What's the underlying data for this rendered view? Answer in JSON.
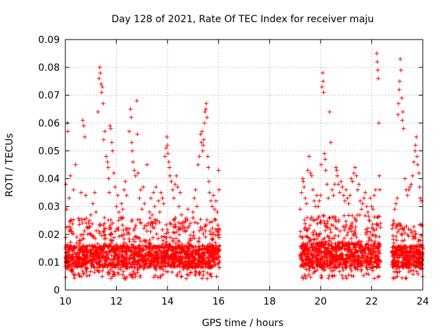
{
  "chart_data": {
    "type": "scatter",
    "title": "Day 128 of 2021, Rate Of TEC Index for receiver maju",
    "xlabel": "GPS time / hours",
    "ylabel": "ROTI / TECUs",
    "xlim": [
      10,
      24
    ],
    "ylim": [
      0,
      0.09
    ],
    "x_ticks": [
      {
        "value": 10,
        "label": "10"
      },
      {
        "value": 12,
        "label": "12"
      },
      {
        "value": 14,
        "label": "14"
      },
      {
        "value": 16,
        "label": "16"
      },
      {
        "value": 18,
        "label": "18"
      },
      {
        "value": 20,
        "label": "20"
      },
      {
        "value": 22,
        "label": "22"
      },
      {
        "value": 24,
        "label": "24"
      }
    ],
    "y_ticks": [
      {
        "value": 0,
        "label": "0"
      },
      {
        "value": 0.01,
        "label": "0.01"
      },
      {
        "value": 0.02,
        "label": "0.02"
      },
      {
        "value": 0.03,
        "label": "0.03"
      },
      {
        "value": 0.04,
        "label": "0.04"
      },
      {
        "value": 0.05,
        "label": "0.05"
      },
      {
        "value": 0.06,
        "label": "0.06"
      },
      {
        "value": 0.07,
        "label": "0.07"
      },
      {
        "value": 0.08,
        "label": "0.08"
      },
      {
        "value": 0.09,
        "label": "0.09"
      }
    ],
    "grid": true,
    "grid_style": "dotted",
    "marker": "plus",
    "marker_color": "#ff0000",
    "series": [
      {
        "name": "ROTI",
        "points": [
          [
            10.02,
            0.038
          ],
          [
            10.05,
            0.029
          ],
          [
            10.08,
            0.06
          ],
          [
            10.1,
            0.057
          ],
          [
            10.15,
            0.033
          ],
          [
            10.2,
            0.041
          ],
          [
            10.25,
            0.021
          ],
          [
            10.32,
            0.036
          ],
          [
            10.4,
            0.045
          ],
          [
            10.45,
            0.019
          ],
          [
            10.55,
            0.025
          ],
          [
            10.62,
            0.035
          ],
          [
            10.68,
            0.061
          ],
          [
            10.72,
            0.059
          ],
          [
            10.76,
            0.055
          ],
          [
            10.8,
            0.034
          ],
          [
            10.88,
            0.02
          ],
          [
            10.95,
            0.025
          ],
          [
            11.0,
            0.027
          ],
          [
            11.08,
            0.031
          ],
          [
            11.15,
            0.035
          ],
          [
            11.2,
            0.028
          ],
          [
            11.28,
            0.064
          ],
          [
            11.32,
            0.076
          ],
          [
            11.35,
            0.08
          ],
          [
            11.37,
            0.078
          ],
          [
            11.4,
            0.074
          ],
          [
            11.42,
            0.071
          ],
          [
            11.45,
            0.073
          ],
          [
            11.48,
            0.067
          ],
          [
            11.5,
            0.054
          ],
          [
            11.55,
            0.057
          ],
          [
            11.6,
            0.048
          ],
          [
            11.65,
            0.046
          ],
          [
            11.68,
            0.044
          ],
          [
            11.7,
            0.04
          ],
          [
            11.72,
            0.035
          ],
          [
            11.75,
            0.059
          ],
          [
            11.78,
            0.058
          ],
          [
            11.82,
            0.053
          ],
          [
            11.85,
            0.05
          ],
          [
            11.9,
            0.042
          ],
          [
            11.95,
            0.037
          ],
          [
            12.0,
            0.03
          ],
          [
            12.05,
            0.034
          ],
          [
            12.1,
            0.028
          ],
          [
            12.15,
            0.026
          ],
          [
            12.2,
            0.031
          ],
          [
            12.25,
            0.029
          ],
          [
            12.3,
            0.036
          ],
          [
            12.35,
            0.039
          ],
          [
            12.4,
            0.034
          ],
          [
            12.45,
            0.022
          ],
          [
            12.5,
            0.057
          ],
          [
            12.55,
            0.065
          ],
          [
            12.58,
            0.062
          ],
          [
            12.6,
            0.053
          ],
          [
            12.62,
            0.05
          ],
          [
            12.65,
            0.046
          ],
          [
            12.7,
            0.043
          ],
          [
            12.75,
            0.041
          ],
          [
            12.8,
            0.068
          ],
          [
            12.82,
            0.056
          ],
          [
            12.85,
            0.042
          ],
          [
            12.9,
            0.033
          ],
          [
            12.95,
            0.036
          ],
          [
            13.0,
            0.029
          ],
          [
            13.05,
            0.037
          ],
          [
            13.1,
            0.031
          ],
          [
            13.2,
            0.045
          ],
          [
            13.25,
            0.024
          ],
          [
            13.3,
            0.028
          ],
          [
            13.35,
            0.033
          ],
          [
            13.4,
            0.027
          ],
          [
            13.45,
            0.035
          ],
          [
            13.5,
            0.03
          ],
          [
            13.55,
            0.037
          ],
          [
            13.6,
            0.025
          ],
          [
            13.65,
            0.032
          ],
          [
            13.7,
            0.028
          ],
          [
            13.75,
            0.035
          ],
          [
            13.8,
            0.033
          ],
          [
            13.85,
            0.031
          ],
          [
            13.9,
            0.048
          ],
          [
            13.95,
            0.051
          ],
          [
            13.98,
            0.055
          ],
          [
            14.0,
            0.052
          ],
          [
            14.02,
            0.049
          ],
          [
            14.05,
            0.046
          ],
          [
            14.08,
            0.044
          ],
          [
            14.1,
            0.041
          ],
          [
            14.15,
            0.039
          ],
          [
            14.2,
            0.036
          ],
          [
            14.25,
            0.033
          ],
          [
            14.3,
            0.038
          ],
          [
            14.35,
            0.041
          ],
          [
            14.4,
            0.037
          ],
          [
            14.45,
            0.03
          ],
          [
            14.5,
            0.035
          ],
          [
            14.55,
            0.027
          ],
          [
            14.6,
            0.023
          ],
          [
            14.7,
            0.025
          ],
          [
            14.8,
            0.029
          ],
          [
            14.9,
            0.024
          ],
          [
            15.0,
            0.028
          ],
          [
            15.05,
            0.033
          ],
          [
            15.1,
            0.036
          ],
          [
            15.15,
            0.03
          ],
          [
            15.2,
            0.045
          ],
          [
            15.25,
            0.048
          ],
          [
            15.3,
            0.056
          ],
          [
            15.33,
            0.053
          ],
          [
            15.36,
            0.057
          ],
          [
            15.38,
            0.05
          ],
          [
            15.4,
            0.052
          ],
          [
            15.42,
            0.054
          ],
          [
            15.45,
            0.06
          ],
          [
            15.47,
            0.064
          ],
          [
            15.5,
            0.065
          ],
          [
            15.52,
            0.067
          ],
          [
            15.55,
            0.062
          ],
          [
            15.58,
            0.048
          ],
          [
            15.6,
            0.044
          ],
          [
            15.62,
            0.039
          ],
          [
            15.65,
            0.035
          ],
          [
            15.7,
            0.032
          ],
          [
            15.75,
            0.03
          ],
          [
            15.8,
            0.034
          ],
          [
            15.85,
            0.029
          ],
          [
            15.9,
            0.032
          ],
          [
            15.95,
            0.028
          ],
          [
            16.0,
            0.043
          ],
          [
            16.02,
            0.036
          ],
          [
            19.2,
            0.029
          ],
          [
            19.25,
            0.035
          ],
          [
            19.3,
            0.04
          ],
          [
            19.32,
            0.039
          ],
          [
            19.35,
            0.037
          ],
          [
            19.4,
            0.033
          ],
          [
            19.45,
            0.031
          ],
          [
            19.5,
            0.043
          ],
          [
            19.55,
            0.048
          ],
          [
            19.6,
            0.042
          ],
          [
            19.65,
            0.041
          ],
          [
            19.7,
            0.036
          ],
          [
            19.75,
            0.032
          ],
          [
            19.8,
            0.03
          ],
          [
            19.85,
            0.034
          ],
          [
            19.9,
            0.03
          ],
          [
            19.95,
            0.032
          ],
          [
            20.0,
            0.034
          ],
          [
            20.02,
            0.045
          ],
          [
            20.05,
            0.073
          ],
          [
            20.08,
            0.078
          ],
          [
            20.1,
            0.075
          ],
          [
            20.12,
            0.071
          ],
          [
            20.15,
            0.049
          ],
          [
            20.18,
            0.047
          ],
          [
            20.2,
            0.043
          ],
          [
            20.25,
            0.038
          ],
          [
            20.3,
            0.033
          ],
          [
            20.35,
            0.064
          ],
          [
            20.4,
            0.053
          ],
          [
            20.45,
            0.036
          ],
          [
            20.5,
            0.034
          ],
          [
            20.55,
            0.038
          ],
          [
            20.6,
            0.044
          ],
          [
            20.63,
            0.043
          ],
          [
            20.65,
            0.041
          ],
          [
            20.7,
            0.038
          ],
          [
            20.75,
            0.035
          ],
          [
            20.8,
            0.039
          ],
          [
            20.85,
            0.037
          ],
          [
            20.9,
            0.034
          ],
          [
            20.95,
            0.032
          ],
          [
            21.0,
            0.036
          ],
          [
            21.05,
            0.033
          ],
          [
            21.1,
            0.031
          ],
          [
            21.15,
            0.034
          ],
          [
            21.2,
            0.04
          ],
          [
            21.25,
            0.039
          ],
          [
            21.3,
            0.042
          ],
          [
            21.35,
            0.044
          ],
          [
            21.4,
            0.041
          ],
          [
            21.45,
            0.036
          ],
          [
            21.5,
            0.038
          ],
          [
            21.55,
            0.032
          ],
          [
            21.6,
            0.029
          ],
          [
            21.65,
            0.031
          ],
          [
            21.7,
            0.033
          ],
          [
            21.75,
            0.035
          ],
          [
            21.8,
            0.03
          ],
          [
            21.85,
            0.028
          ],
          [
            21.9,
            0.025
          ],
          [
            21.95,
            0.033
          ],
          [
            22.0,
            0.03
          ],
          [
            22.05,
            0.029
          ],
          [
            22.1,
            0.034
          ],
          [
            22.15,
            0.036
          ],
          [
            22.2,
            0.085
          ],
          [
            22.22,
            0.082
          ],
          [
            22.24,
            0.079
          ],
          [
            22.26,
            0.076
          ],
          [
            22.28,
            0.06
          ],
          [
            22.3,
            0.041
          ],
          [
            22.32,
            0.036
          ],
          [
            22.8,
            0.022
          ],
          [
            22.85,
            0.025
          ],
          [
            22.9,
            0.029
          ],
          [
            22.95,
            0.031
          ],
          [
            23.0,
            0.033
          ],
          [
            23.03,
            0.063
          ],
          [
            23.05,
            0.067
          ],
          [
            23.08,
            0.072
          ],
          [
            23.1,
            0.075
          ],
          [
            23.12,
            0.083
          ],
          [
            23.15,
            0.079
          ],
          [
            23.18,
            0.069
          ],
          [
            23.2,
            0.061
          ],
          [
            23.22,
            0.064
          ],
          [
            23.25,
            0.058
          ],
          [
            23.3,
            0.04
          ],
          [
            23.35,
            0.036
          ],
          [
            23.4,
            0.034
          ],
          [
            23.45,
            0.036
          ],
          [
            23.5,
            0.037
          ],
          [
            23.55,
            0.038
          ],
          [
            23.6,
            0.041
          ],
          [
            23.65,
            0.046
          ],
          [
            23.7,
            0.05
          ],
          [
            23.72,
            0.052
          ],
          [
            23.75,
            0.055
          ],
          [
            23.78,
            0.048
          ],
          [
            23.8,
            0.045
          ],
          [
            23.85,
            0.042
          ],
          [
            23.88,
            0.037
          ],
          [
            23.9,
            0.033
          ],
          [
            23.95,
            0.032
          ]
        ],
        "bands": [
          {
            "x_start": 10.0,
            "x_end": 16.05,
            "y_low": 0.004,
            "y_high": 0.026,
            "count": 1700,
            "dense_y_low": 0.008,
            "dense_y_high": 0.016
          },
          {
            "x_start": 19.2,
            "x_end": 22.35,
            "y_low": 0.004,
            "y_high": 0.027,
            "count": 900,
            "dense_y_low": 0.008,
            "dense_y_high": 0.017
          },
          {
            "x_start": 22.8,
            "x_end": 24.0,
            "y_low": 0.004,
            "y_high": 0.024,
            "count": 380,
            "dense_y_low": 0.008,
            "dense_y_high": 0.016
          }
        ]
      }
    ]
  }
}
